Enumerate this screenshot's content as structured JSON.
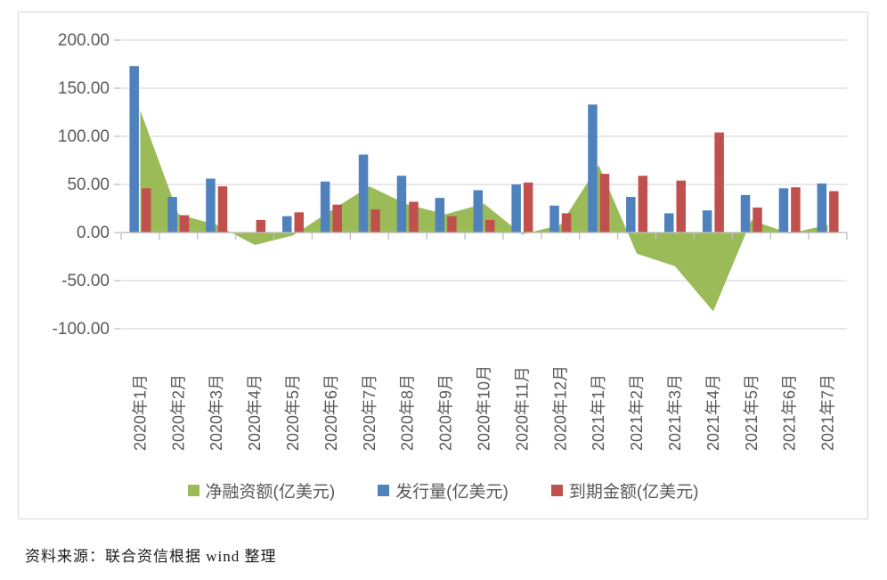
{
  "caption": "资料来源：联合资信根据 wind 整理",
  "chart_data": {
    "type": "combo-area-bar",
    "title": "",
    "xlabel": "",
    "ylabel": "",
    "categories": [
      "2020年1月",
      "2020年2月",
      "2020年3月",
      "2020年4月",
      "2020年5月",
      "2020年6月",
      "2020年7月",
      "2020年8月",
      "2020年9月",
      "2020年10月",
      "2020年11月",
      "2020年12月",
      "2021年1月",
      "2021年2月",
      "2021年3月",
      "2021年4月",
      "2021年5月",
      "2021年6月",
      "2021年7月"
    ],
    "series": [
      {
        "name": "净融资额(亿美元)",
        "chart_type": "area",
        "color": "#9BBB59",
        "values": [
          127,
          19,
          8,
          -13,
          -3,
          23,
          48,
          29,
          19,
          30,
          -2,
          8,
          70,
          -22,
          -35,
          -82,
          13,
          -1,
          8
        ]
      },
      {
        "name": "发行量(亿美元)",
        "chart_type": "bar",
        "color": "#4F81BD",
        "values": [
          173,
          37,
          56,
          0,
          17,
          53,
          81,
          59,
          36,
          44,
          50,
          28,
          133,
          37,
          20,
          23,
          39,
          46,
          51
        ]
      },
      {
        "name": "到期金额(亿美元)",
        "chart_type": "bar",
        "color": "#C0504D",
        "values": [
          46,
          18,
          48,
          13,
          21,
          29,
          24,
          32,
          17,
          13,
          52,
          20,
          61,
          59,
          54,
          104,
          26,
          47,
          43
        ]
      }
    ],
    "ylim": [
      -100,
      200
    ],
    "ytick_step": 50,
    "grid": true,
    "legend_position": "bottom",
    "axis_text_color": "#595959",
    "gridline_color": "#D9D9D9",
    "axis_line_color": "#BFBFBF"
  }
}
